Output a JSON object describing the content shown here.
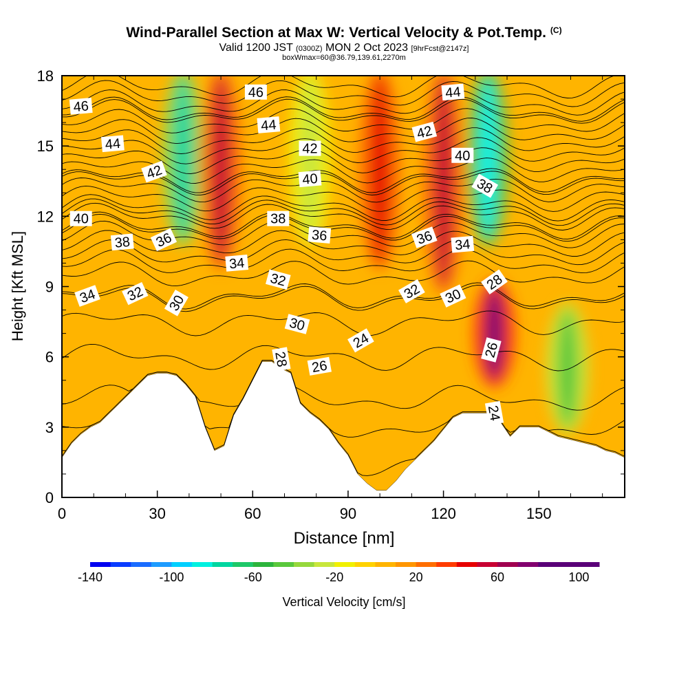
{
  "title": {
    "main": "Wind-Parallel Section at Max W: Vertical Velocity & Pot.Temp.",
    "copyright": "(C)",
    "valid_prefix": "Valid 1200 JST",
    "valid_utc": "(0300Z)",
    "valid_date": "MON 2 Oct 2023",
    "forecast": "[9hrFcst@2147z]",
    "box_info": "boxWmax=60@36.79,139.61,2270m"
  },
  "colors": {
    "palette": [
      "#0000f0",
      "#0a3cff",
      "#1a6cff",
      "#1e9cff",
      "#00d0ff",
      "#00f0e0",
      "#00d6a0",
      "#1ec868",
      "#2cb43c",
      "#5ac83c",
      "#96d83c",
      "#c8e63c",
      "#f0f000",
      "#ffd200",
      "#ffb400",
      "#ff9600",
      "#ff6e00",
      "#ff3c00",
      "#e60000",
      "#c80032",
      "#a00050",
      "#82006e",
      "#5a0078"
    ],
    "terrain": "#ffffff",
    "contour": "#000000"
  },
  "chart_data": {
    "type": "contour-cross-section",
    "x": {
      "label": "Distance [nm]",
      "range": [
        0,
        177
      ],
      "ticks": [
        0,
        30,
        60,
        90,
        120,
        150
      ]
    },
    "y": {
      "label": "Height [Kft MSL]",
      "range": [
        0,
        18
      ],
      "ticks": [
        0,
        3,
        6,
        9,
        12,
        15,
        18
      ]
    },
    "colorbar": {
      "label": "Vertical Velocity [cm/s]",
      "range": [
        -140,
        110
      ],
      "step": 10,
      "ticks": [
        -140,
        -100,
        -60,
        -20,
        20,
        60,
        100
      ]
    },
    "vertical_velocity_features": [
      {
        "x": 38,
        "y_range": [
          11,
          18
        ],
        "w_cm_s": -80
      },
      {
        "x": 50,
        "y_range": [
          10,
          18
        ],
        "w_cm_s": 50
      },
      {
        "x": 78,
        "y_range": [
          11,
          18
        ],
        "w_cm_s": -30
      },
      {
        "x": 100,
        "y_range": [
          10,
          18
        ],
        "w_cm_s": 40
      },
      {
        "x": 120,
        "y_range": [
          9,
          18
        ],
        "w_cm_s": 50
      },
      {
        "x": 134,
        "y_range": [
          11,
          18
        ],
        "w_cm_s": -90
      },
      {
        "x": 136,
        "y_range": [
          5,
          9
        ],
        "w_cm_s": 70
      },
      {
        "x": 159,
        "y_range": [
          3,
          8
        ],
        "w_cm_s": -45
      }
    ],
    "terrain_top_kft": [
      [
        0,
        1.7
      ],
      [
        3,
        2.3
      ],
      [
        6,
        2.7
      ],
      [
        9,
        3.0
      ],
      [
        12,
        3.2
      ],
      [
        15,
        3.6
      ],
      [
        18,
        4.0
      ],
      [
        21,
        4.4
      ],
      [
        24,
        4.8
      ],
      [
        27,
        5.2
      ],
      [
        30,
        5.3
      ],
      [
        33,
        5.3
      ],
      [
        36,
        5.2
      ],
      [
        39,
        4.8
      ],
      [
        42,
        4.3
      ],
      [
        45,
        3.0
      ],
      [
        48,
        2.0
      ],
      [
        51,
        2.2
      ],
      [
        54,
        3.5
      ],
      [
        57,
        4.2
      ],
      [
        60,
        5.0
      ],
      [
        63,
        5.8
      ],
      [
        66,
        5.8
      ],
      [
        69,
        5.5
      ],
      [
        72,
        5.3
      ],
      [
        75,
        4.0
      ],
      [
        78,
        3.6
      ],
      [
        81,
        3.3
      ],
      [
        84,
        2.9
      ],
      [
        87,
        2.3
      ],
      [
        90,
        1.8
      ],
      [
        93,
        1.0
      ],
      [
        96,
        0.6
      ],
      [
        99,
        0.3
      ],
      [
        102,
        0.3
      ],
      [
        105,
        0.7
      ],
      [
        108,
        1.2
      ],
      [
        111,
        1.6
      ],
      [
        114,
        2.0
      ],
      [
        117,
        2.4
      ],
      [
        120,
        2.9
      ],
      [
        123,
        3.4
      ],
      [
        126,
        3.6
      ],
      [
        129,
        3.6
      ],
      [
        132,
        3.6
      ],
      [
        135,
        3.6
      ],
      [
        138,
        3.2
      ],
      [
        141,
        2.6
      ],
      [
        144,
        3.0
      ],
      [
        147,
        3.0
      ],
      [
        150,
        3.0
      ],
      [
        153,
        2.8
      ],
      [
        156,
        2.6
      ],
      [
        159,
        2.5
      ],
      [
        162,
        2.4
      ],
      [
        165,
        2.3
      ],
      [
        168,
        2.2
      ],
      [
        171,
        2.0
      ],
      [
        174,
        1.9
      ],
      [
        177,
        1.7
      ]
    ],
    "theta_contours": [
      {
        "label": "24",
        "level": 1.5,
        "label_at": [
          136,
          3.6
        ],
        "rot": 80
      },
      {
        "label": "26",
        "level": 4.2,
        "label_at": [
          135,
          6.3
        ],
        "rot": -75
      },
      {
        "label": "26",
        "level": 4.2,
        "label_at": [
          81,
          5.6
        ],
        "rot": -10
      },
      {
        "label": "24",
        "level": 3.0,
        "label_at": [
          94,
          6.7
        ],
        "rot": -30
      },
      {
        "label": "28",
        "level": 6.0,
        "label_at": [
          69,
          5.9
        ],
        "rot": 80
      },
      {
        "label": "30",
        "level": 7.5,
        "label_at": [
          36,
          8.3
        ],
        "rot": -60
      },
      {
        "label": "30",
        "level": 7.5,
        "label_at": [
          74,
          7.4
        ],
        "rot": 15
      },
      {
        "label": "30",
        "level": 7.5,
        "label_at": [
          123,
          8.6
        ],
        "rot": -25
      },
      {
        "label": "28",
        "level": 8.6,
        "label_at": [
          136,
          9.2
        ],
        "rot": -35
      },
      {
        "label": "32",
        "level": 8.5,
        "label_at": [
          23,
          8.7
        ],
        "rot": -25
      },
      {
        "label": "32",
        "level": 8.5,
        "label_at": [
          68,
          9.3
        ],
        "rot": 15
      },
      {
        "label": "32",
        "level": 8.5,
        "label_at": [
          110,
          8.8
        ],
        "rot": -30
      },
      {
        "label": "34",
        "level": 9.5,
        "label_at": [
          8,
          8.6
        ],
        "rot": -20
      },
      {
        "label": "34",
        "level": 9.5,
        "label_at": [
          55,
          10.0
        ],
        "rot": -5
      },
      {
        "label": "34",
        "level": 9.5,
        "label_at": [
          126,
          10.8
        ],
        "rot": -5
      },
      {
        "label": "36",
        "level": 10.8,
        "label_at": [
          32,
          11.0
        ],
        "rot": -25
      },
      {
        "label": "36",
        "level": 10.8,
        "label_at": [
          81,
          11.2
        ],
        "rot": 5
      },
      {
        "label": "36",
        "level": 10.8,
        "label_at": [
          114,
          11.1
        ],
        "rot": -20
      },
      {
        "label": "38",
        "level": 11.5,
        "label_at": [
          19,
          10.9
        ],
        "rot": -5
      },
      {
        "label": "38",
        "level": 11.5,
        "label_at": [
          68,
          11.9
        ],
        "rot": 0
      },
      {
        "label": "38",
        "level": 11.5,
        "label_at": [
          133,
          13.3
        ],
        "rot": 30
      },
      {
        "label": "40",
        "level": 12.2,
        "label_at": [
          6,
          11.9
        ],
        "rot": 0
      },
      {
        "label": "40",
        "level": 12.2,
        "label_at": [
          78,
          13.6
        ],
        "rot": -5
      },
      {
        "label": "40",
        "level": 12.2,
        "label_at": [
          126,
          14.6
        ],
        "rot": 0
      },
      {
        "label": "42",
        "level": 13.5,
        "label_at": [
          29,
          13.9
        ],
        "rot": -20
      },
      {
        "label": "42",
        "level": 13.5,
        "label_at": [
          78,
          14.9
        ],
        "rot": 0
      },
      {
        "label": "42",
        "level": 13.5,
        "label_at": [
          114,
          15.6
        ],
        "rot": -15
      },
      {
        "label": "44",
        "level": 15.2,
        "label_at": [
          16,
          15.1
        ],
        "rot": -5
      },
      {
        "label": "44",
        "level": 15.2,
        "label_at": [
          65,
          15.9
        ],
        "rot": -5
      },
      {
        "label": "44",
        "level": 15.2,
        "label_at": [
          123,
          17.3
        ],
        "rot": -5
      },
      {
        "label": "46",
        "level": 16.5,
        "label_at": [
          6,
          16.7
        ],
        "rot": -5
      },
      {
        "label": "46",
        "level": 16.5,
        "label_at": [
          61,
          17.3
        ],
        "rot": 0
      }
    ]
  }
}
